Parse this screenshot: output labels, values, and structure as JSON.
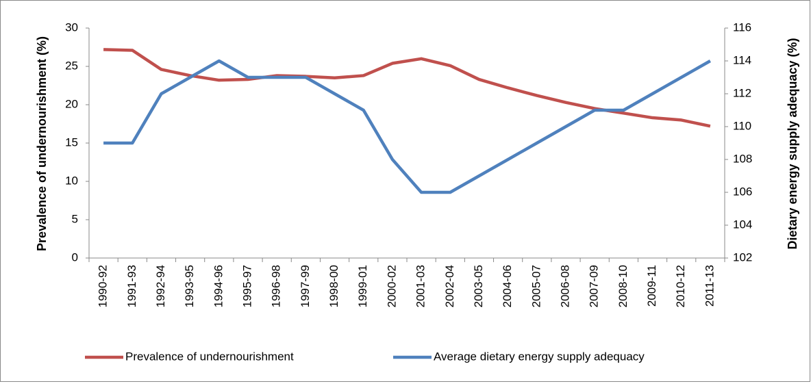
{
  "chart_data": {
    "type": "line",
    "categories": [
      "1990-92",
      "1991-93",
      "1992-94",
      "1993-95",
      "1994-96",
      "1995-97",
      "1996-98",
      "1997-99",
      "1998-00",
      "1999-01",
      "2000-02",
      "2001-03",
      "2002-04",
      "2003-05",
      "2004-06",
      "2005-07",
      "2006-08",
      "2007-09",
      "2008-10",
      "2009-11",
      "2010-12",
      "2011-13"
    ],
    "series": [
      {
        "name": "Prevalence of undernourishment",
        "color": "#c0504d",
        "values": [
          27.2,
          27.1,
          24.6,
          23.8,
          23.2,
          23.3,
          23.8,
          23.7,
          23.5,
          23.8,
          25.4,
          26.0,
          25.1,
          23.3,
          22.2,
          21.2,
          20.3,
          19.5,
          18.9,
          18.3,
          18.0,
          17.2
        ]
      },
      {
        "name": "Average dietary energy supply adequacy",
        "color": "#4f81bd",
        "axis": "y2",
        "values": [
          109,
          109,
          112,
          113,
          114,
          113,
          113,
          113,
          112,
          111,
          108,
          106,
          106,
          107,
          108,
          109,
          110,
          111,
          111,
          112,
          113,
          114
        ]
      }
    ],
    "ylabel": "Prevalence of undernourishment (%)",
    "y2label": "Dietary energy supply adequacy (%)",
    "ylim": [
      0,
      30
    ],
    "yticks": [
      0,
      5,
      10,
      15,
      20,
      25,
      30
    ],
    "y2lim": [
      102,
      116
    ],
    "y2ticks": [
      102,
      104,
      106,
      108,
      110,
      112,
      114,
      116
    ],
    "legend": "bottom"
  }
}
